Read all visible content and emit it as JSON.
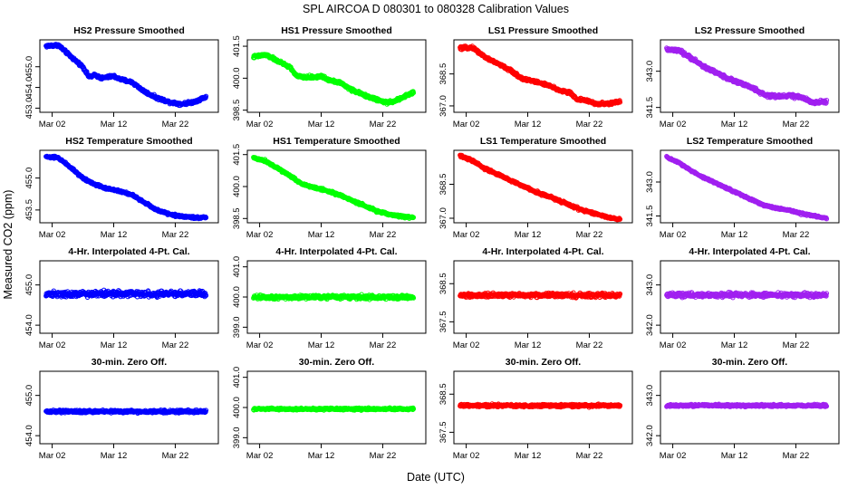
{
  "figure": {
    "title": "SPL   AIRCOA D   080301 to 080328   Calibration Values",
    "xlabel": "Date (UTC)",
    "ylabel": "Measured CO2 (ppm)"
  },
  "chart_data": [
    {
      "type": "scatter",
      "title": "HS2 Pressure Smoothed",
      "color": "#0000ff",
      "xlim": [
        -1,
        28
      ],
      "x_ticks": [
        {
          "value": 1,
          "label": "Mar 02"
        },
        {
          "value": 11,
          "label": "Mar 12"
        },
        {
          "value": 21,
          "label": "Mar 22"
        }
      ],
      "ylim": [
        452.8,
        456.3
      ],
      "y_ticks": [
        {
          "value": 453.0,
          "label": "453.0"
        },
        {
          "value": 454.0,
          "label": "454.0"
        },
        {
          "value": 455.0,
          "label": "455.0"
        }
      ],
      "series": [
        {
          "name": "HS2 Pressure Smoothed",
          "x": [
            0,
            2,
            4,
            6,
            7,
            8,
            9,
            10,
            11,
            12,
            14,
            16,
            18,
            20,
            21,
            22,
            24,
            26
          ],
          "y": [
            456.0,
            456.05,
            455.5,
            455.0,
            454.5,
            454.6,
            454.45,
            454.5,
            454.55,
            454.4,
            454.25,
            453.8,
            453.5,
            453.3,
            453.25,
            453.2,
            453.3,
            453.55
          ],
          "noise": 0.1
        }
      ]
    },
    {
      "type": "scatter",
      "title": "HS1 Pressure Smoothed",
      "color": "#00ff00",
      "xlim": [
        -1,
        28
      ],
      "x_ticks": [
        {
          "value": 1,
          "label": "Mar 02"
        },
        {
          "value": 11,
          "label": "Mar 12"
        },
        {
          "value": 21,
          "label": "Mar 22"
        }
      ],
      "ylim": [
        398.4,
        401.8
      ],
      "y_ticks": [
        {
          "value": 398.5,
          "label": "398.5"
        },
        {
          "value": 400.0,
          "label": "400.0"
        },
        {
          "value": 401.5,
          "label": "401.5"
        }
      ],
      "series": [
        {
          "name": "HS1 Pressure Smoothed",
          "x": [
            0,
            2,
            4,
            6,
            7,
            8,
            10,
            11,
            12,
            14,
            16,
            18,
            20,
            21,
            22,
            24,
            26
          ],
          "y": [
            401.0,
            401.1,
            400.8,
            400.5,
            400.1,
            400.05,
            400.05,
            400.1,
            399.95,
            399.8,
            399.45,
            399.2,
            399.0,
            398.9,
            398.85,
            399.05,
            399.35
          ],
          "noise": 0.1
        }
      ]
    },
    {
      "type": "scatter",
      "title": "LS1 Pressure Smoothed",
      "color": "#ff0000",
      "xlim": [
        -1,
        28
      ],
      "x_ticks": [
        {
          "value": 1,
          "label": "Mar 02"
        },
        {
          "value": 11,
          "label": "Mar 12"
        },
        {
          "value": 21,
          "label": "Mar 22"
        }
      ],
      "ylim": [
        366.7,
        370.1
      ],
      "y_ticks": [
        {
          "value": 367.0,
          "label": "367.0"
        },
        {
          "value": 368.5,
          "label": "368.5"
        }
      ],
      "series": [
        {
          "name": "LS1 Pressure Smoothed",
          "x": [
            0,
            2,
            4,
            6,
            8,
            10,
            12,
            14,
            16,
            18,
            19,
            20,
            22,
            24,
            26
          ],
          "y": [
            369.7,
            369.75,
            369.3,
            369.0,
            368.7,
            368.3,
            368.15,
            368.0,
            367.75,
            367.6,
            367.3,
            367.3,
            367.1,
            367.1,
            367.2
          ],
          "noise": 0.1
        }
      ]
    },
    {
      "type": "scatter",
      "title": "LS2 Pressure Smoothed",
      "color": "#a020f0",
      "xlim": [
        -1,
        28
      ],
      "x_ticks": [
        {
          "value": 1,
          "label": "Mar 02"
        },
        {
          "value": 11,
          "label": "Mar 12"
        },
        {
          "value": 21,
          "label": "Mar 22"
        }
      ],
      "ylim": [
        341.3,
        344.3
      ],
      "y_ticks": [
        {
          "value": 341.5,
          "label": "341.5"
        },
        {
          "value": 343.0,
          "label": "343.0"
        }
      ],
      "series": [
        {
          "name": "LS2 Pressure Smoothed",
          "x": [
            0,
            2,
            4,
            6,
            8,
            10,
            12,
            14,
            16,
            18,
            20,
            22,
            24,
            26
          ],
          "y": [
            343.9,
            343.85,
            343.55,
            343.2,
            342.95,
            342.7,
            342.5,
            342.3,
            342.0,
            341.95,
            342.0,
            341.9,
            341.7,
            341.75
          ],
          "noise": 0.1
        }
      ]
    },
    {
      "type": "scatter",
      "title": "HS2 Temperature Smoothed",
      "color": "#0000ff",
      "xlim": [
        -1,
        28
      ],
      "x_ticks": [
        {
          "value": 1,
          "label": "Mar 02"
        },
        {
          "value": 11,
          "label": "Mar 12"
        },
        {
          "value": 21,
          "label": "Mar 22"
        }
      ],
      "ylim": [
        452.9,
        456.3
      ],
      "y_ticks": [
        {
          "value": 453.5,
          "label": "453.5"
        },
        {
          "value": 455.0,
          "label": "455.0"
        }
      ],
      "series": [
        {
          "name": "HS2 Temperature Smoothed",
          "x": [
            0,
            2,
            4,
            6,
            8,
            10,
            12,
            14,
            16,
            18,
            20,
            22,
            24,
            26
          ],
          "y": [
            456.0,
            455.95,
            455.5,
            455.0,
            454.7,
            454.5,
            454.4,
            454.2,
            453.85,
            453.5,
            453.3,
            453.2,
            453.15,
            453.15
          ],
          "noise": 0.08
        }
      ]
    },
    {
      "type": "scatter",
      "title": "HS1 Temperature Smoothed",
      "color": "#00ff00",
      "xlim": [
        -1,
        28
      ],
      "x_ticks": [
        {
          "value": 1,
          "label": "Mar 02"
        },
        {
          "value": 11,
          "label": "Mar 12"
        },
        {
          "value": 21,
          "label": "Mar 22"
        }
      ],
      "ylim": [
        398.3,
        401.7
      ],
      "y_ticks": [
        {
          "value": 398.5,
          "label": "398.5"
        },
        {
          "value": 400.0,
          "label": "400.0"
        },
        {
          "value": 401.5,
          "label": "401.5"
        }
      ],
      "series": [
        {
          "name": "HS1 Temperature Smoothed",
          "x": [
            0,
            2,
            4,
            6,
            8,
            10,
            12,
            14,
            16,
            18,
            20,
            22,
            24,
            26
          ],
          "y": [
            401.35,
            401.2,
            400.85,
            400.5,
            400.1,
            399.95,
            399.8,
            399.6,
            399.35,
            399.1,
            398.85,
            398.7,
            398.6,
            398.55
          ],
          "noise": 0.08
        }
      ]
    },
    {
      "type": "scatter",
      "title": "LS1 Temperature Smoothed",
      "color": "#ff0000",
      "xlim": [
        -1,
        28
      ],
      "x_ticks": [
        {
          "value": 1,
          "label": "Mar 02"
        },
        {
          "value": 11,
          "label": "Mar 12"
        },
        {
          "value": 21,
          "label": "Mar 22"
        }
      ],
      "ylim": [
        366.8,
        370.0
      ],
      "y_ticks": [
        {
          "value": 367.0,
          "label": "367.0"
        },
        {
          "value": 368.5,
          "label": "368.5"
        }
      ],
      "series": [
        {
          "name": "LS1 Temperature Smoothed",
          "x": [
            0,
            2,
            4,
            6,
            8,
            10,
            12,
            14,
            16,
            18,
            20,
            22,
            24,
            26
          ],
          "y": [
            369.75,
            369.55,
            369.2,
            368.95,
            368.7,
            368.45,
            368.2,
            368.0,
            367.8,
            367.55,
            367.35,
            367.2,
            367.05,
            366.95
          ],
          "noise": 0.08
        }
      ]
    },
    {
      "type": "scatter",
      "title": "LS2 Temperature Smoothed",
      "color": "#a020f0",
      "xlim": [
        -1,
        28
      ],
      "x_ticks": [
        {
          "value": 1,
          "label": "Mar 02"
        },
        {
          "value": 11,
          "label": "Mar 12"
        },
        {
          "value": 21,
          "label": "Mar 22"
        }
      ],
      "ylim": [
        341.2,
        344.4
      ],
      "y_ticks": [
        {
          "value": 341.5,
          "label": "341.5"
        },
        {
          "value": 343.0,
          "label": "343.0"
        }
      ],
      "series": [
        {
          "name": "LS2 Temperature Smoothed",
          "x": [
            0,
            2,
            4,
            6,
            8,
            10,
            12,
            14,
            16,
            18,
            20,
            22,
            24,
            26
          ],
          "y": [
            344.1,
            343.85,
            343.5,
            343.2,
            342.95,
            342.7,
            342.45,
            342.2,
            341.95,
            341.85,
            341.75,
            341.6,
            341.5,
            341.4
          ],
          "noise": 0.06
        }
      ]
    },
    {
      "type": "scatter",
      "title": "4-Hr. Interpolated 4-Pt. Cal.",
      "color": "#0000ff",
      "xlim": [
        -1,
        28
      ],
      "x_ticks": [
        {
          "value": 1,
          "label": "Mar 02"
        },
        {
          "value": 11,
          "label": "Mar 12"
        },
        {
          "value": 21,
          "label": "Mar 22"
        }
      ],
      "ylim": [
        453.8,
        455.6
      ],
      "y_ticks": [
        {
          "value": 454.0,
          "label": "454.0"
        },
        {
          "value": 455.0,
          "label": "455.0"
        }
      ],
      "series": [
        {
          "name": "4-Hr. Interpolated 4-Pt. Cal.",
          "x": [
            0,
            26
          ],
          "y": [
            454.78,
            454.78
          ],
          "noise": 0.1
        }
      ]
    },
    {
      "type": "scatter",
      "title": "4-Hr. Interpolated 4-Pt. Cal.",
      "color": "#00ff00",
      "xlim": [
        -1,
        28
      ],
      "x_ticks": [
        {
          "value": 1,
          "label": "Mar 02"
        },
        {
          "value": 11,
          "label": "Mar 12"
        },
        {
          "value": 21,
          "label": "Mar 22"
        }
      ],
      "ylim": [
        398.8,
        401.2
      ],
      "y_ticks": [
        {
          "value": 399.0,
          "label": "399.0"
        },
        {
          "value": 400.0,
          "label": "400.0"
        },
        {
          "value": 401.0,
          "label": "401.0"
        }
      ],
      "series": [
        {
          "name": "4-Hr. Interpolated 4-Pt. Cal.",
          "x": [
            0,
            26
          ],
          "y": [
            400.0,
            400.0
          ],
          "noise": 0.1
        }
      ]
    },
    {
      "type": "scatter",
      "title": "4-Hr. Interpolated 4-Pt. Cal.",
      "color": "#ff0000",
      "xlim": [
        -1,
        28
      ],
      "x_ticks": [
        {
          "value": 1,
          "label": "Mar 02"
        },
        {
          "value": 11,
          "label": "Mar 12"
        },
        {
          "value": 21,
          "label": "Mar 22"
        }
      ],
      "ylim": [
        367.2,
        369.1
      ],
      "y_ticks": [
        {
          "value": 367.5,
          "label": "367.5"
        },
        {
          "value": 368.5,
          "label": "368.5"
        }
      ],
      "series": [
        {
          "name": "4-Hr. Interpolated 4-Pt. Cal.",
          "x": [
            0,
            26
          ],
          "y": [
            368.2,
            368.2
          ],
          "noise": 0.08
        }
      ]
    },
    {
      "type": "scatter",
      "title": "4-Hr. Interpolated 4-Pt. Cal.",
      "color": "#a020f0",
      "xlim": [
        -1,
        28
      ],
      "x_ticks": [
        {
          "value": 1,
          "label": "Mar 02"
        },
        {
          "value": 11,
          "label": "Mar 12"
        },
        {
          "value": 21,
          "label": "Mar 22"
        }
      ],
      "ylim": [
        341.8,
        343.6
      ],
      "y_ticks": [
        {
          "value": 342.0,
          "label": "342.0"
        },
        {
          "value": 343.0,
          "label": "343.0"
        }
      ],
      "series": [
        {
          "name": "4-Hr. Interpolated 4-Pt. Cal.",
          "x": [
            0,
            26
          ],
          "y": [
            342.75,
            342.75
          ],
          "noise": 0.08
        }
      ]
    },
    {
      "type": "scatter",
      "title": "30-min. Zero Off.",
      "color": "#0000ff",
      "xlim": [
        -1,
        28
      ],
      "x_ticks": [
        {
          "value": 1,
          "label": "Mar 02"
        },
        {
          "value": 11,
          "label": "Mar 12"
        },
        {
          "value": 21,
          "label": "Mar 22"
        }
      ],
      "ylim": [
        453.8,
        455.6
      ],
      "y_ticks": [
        {
          "value": 454.0,
          "label": "454.0"
        },
        {
          "value": 455.0,
          "label": "455.0"
        }
      ],
      "series": [
        {
          "name": "30-min. Zero Off.",
          "x": [
            0,
            26
          ],
          "y": [
            454.6,
            454.6
          ],
          "noise": 0.05
        }
      ]
    },
    {
      "type": "scatter",
      "title": "30-min. Zero Off.",
      "color": "#00ff00",
      "xlim": [
        -1,
        28
      ],
      "x_ticks": [
        {
          "value": 1,
          "label": "Mar 02"
        },
        {
          "value": 11,
          "label": "Mar 12"
        },
        {
          "value": 21,
          "label": "Mar 22"
        }
      ],
      "ylim": [
        398.8,
        401.2
      ],
      "y_ticks": [
        {
          "value": 399.0,
          "label": "399.0"
        },
        {
          "value": 400.0,
          "label": "400.0"
        },
        {
          "value": 401.0,
          "label": "401.0"
        }
      ],
      "series": [
        {
          "name": "30-min. Zero Off.",
          "x": [
            0,
            26
          ],
          "y": [
            399.95,
            399.95
          ],
          "noise": 0.05
        }
      ]
    },
    {
      "type": "scatter",
      "title": "30-min. Zero Off.",
      "color": "#ff0000",
      "xlim": [
        -1,
        28
      ],
      "x_ticks": [
        {
          "value": 1,
          "label": "Mar 02"
        },
        {
          "value": 11,
          "label": "Mar 12"
        },
        {
          "value": 21,
          "label": "Mar 22"
        }
      ],
      "ylim": [
        367.2,
        369.1
      ],
      "y_ticks": [
        {
          "value": 367.5,
          "label": "367.5"
        },
        {
          "value": 368.5,
          "label": "368.5"
        }
      ],
      "series": [
        {
          "name": "30-min. Zero Off.",
          "x": [
            0,
            26
          ],
          "y": [
            368.2,
            368.2
          ],
          "noise": 0.05
        }
      ]
    },
    {
      "type": "scatter",
      "title": "30-min. Zero Off.",
      "color": "#a020f0",
      "xlim": [
        -1,
        28
      ],
      "x_ticks": [
        {
          "value": 1,
          "label": "Mar 02"
        },
        {
          "value": 11,
          "label": "Mar 12"
        },
        {
          "value": 21,
          "label": "Mar 22"
        }
      ],
      "ylim": [
        341.8,
        343.6
      ],
      "y_ticks": [
        {
          "value": 342.0,
          "label": "342.0"
        },
        {
          "value": 343.0,
          "label": "343.0"
        }
      ],
      "series": [
        {
          "name": "30-min. Zero Off.",
          "x": [
            0,
            26
          ],
          "y": [
            342.75,
            342.75
          ],
          "noise": 0.04
        }
      ]
    }
  ]
}
